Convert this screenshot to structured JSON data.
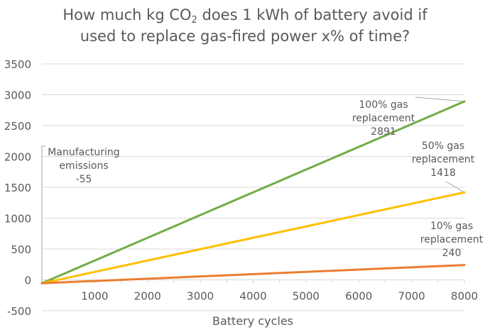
{
  "chart_data": {
    "type": "line",
    "title": {
      "line1_prefix": "How much kg CO",
      "line1_subscript": "2",
      "line1_suffix": " does 1 kWh of battery avoid if",
      "line2": "used to replace gas-fired power x% of time?"
    },
    "xlabel": "Battery cycles",
    "ylabel": "",
    "xlim": [
      0,
      8000
    ],
    "ylim": [
      -500,
      3500
    ],
    "x_ticks": [
      1000,
      2000,
      3000,
      4000,
      5000,
      6000,
      7000,
      8000
    ],
    "x_tick_labels": [
      "1000",
      "2000",
      "3000",
      "4000",
      "5000",
      "6000",
      "7000",
      "8000"
    ],
    "x_minor_tick_step": 500,
    "y_ticks": [
      -500,
      0,
      500,
      1000,
      1500,
      2000,
      2500,
      3000,
      3500
    ],
    "y_tick_labels": [
      "-500",
      "0",
      "500",
      "1000",
      "1500",
      "2000",
      "2500",
      "3000",
      "3500"
    ],
    "grid": true,
    "legend": "none",
    "series": [
      {
        "name": "100% gas replacement",
        "color": "#70ad47",
        "x": [
          0,
          8000
        ],
        "y": [
          -55,
          2891
        ]
      },
      {
        "name": "50% gas replacement",
        "color": "#ffc000",
        "x": [
          0,
          8000
        ],
        "y": [
          -55,
          1418
        ]
      },
      {
        "name": "10% gas replacement",
        "color": "#ed7d31",
        "x": [
          0,
          8000
        ],
        "y": [
          -55,
          240
        ]
      }
    ],
    "annotations": [
      {
        "id": "manufacturing",
        "lines": [
          "Manufacturing",
          "emissions",
          "-55"
        ],
        "x": 0,
        "y": -55
      },
      {
        "id": "gas100",
        "lines": [
          "100% gas",
          "replacement",
          "2891"
        ],
        "x": 8000,
        "y": 2891
      },
      {
        "id": "gas50",
        "lines": [
          "50% gas",
          "replacement",
          "1418"
        ],
        "x": 8000,
        "y": 1418
      },
      {
        "id": "gas10",
        "lines": [
          "10% gas",
          "replacement",
          "240"
        ],
        "x": 8000,
        "y": 240
      }
    ]
  },
  "colors": {
    "text": "#595959",
    "grid": "#d9d9d9",
    "leader": "#a6a6a6"
  }
}
